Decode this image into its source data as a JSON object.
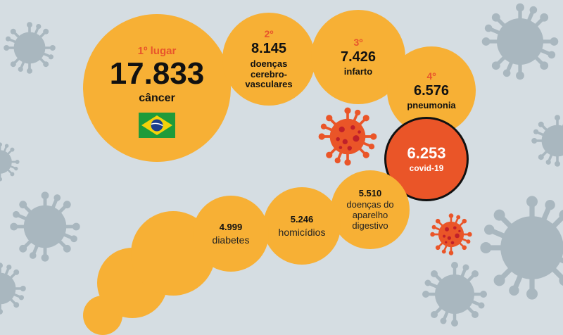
{
  "bubbles": {
    "cancer": {
      "rank": "1º lugar",
      "value": "17.833",
      "label": "câncer"
    },
    "stroke": {
      "rank": "2º",
      "value": "8.145",
      "label": "doenças cerebro-vasculares"
    },
    "infarct": {
      "rank": "3º",
      "value": "7.426",
      "label": "infarto"
    },
    "pneumonia": {
      "rank": "4º",
      "value": "6.576",
      "label": "pneumonia"
    },
    "covid": {
      "value": "6.253",
      "label": "covid-19"
    },
    "digestive": {
      "value": "5.510",
      "label": "doenças do aparelho digestivo"
    },
    "homicides": {
      "value": "5.246",
      "label": "homicídios"
    },
    "diabetes": {
      "value": "4.999",
      "label": "diabetes"
    }
  },
  "colors": {
    "background": "#d5dde2",
    "bubble": "#f7b035",
    "accent": "#e8552b",
    "covid": "#ea5528",
    "virus_gray": "#a9b7bf"
  },
  "icons": [
    "virus-icon",
    "brazil-flag-icon"
  ]
}
